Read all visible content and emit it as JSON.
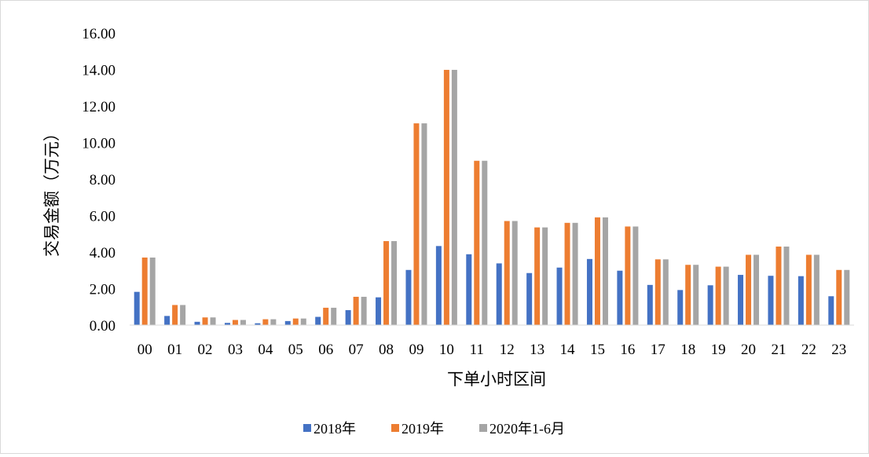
{
  "chart_data": {
    "type": "bar",
    "title": "",
    "xlabel": "下单小时区间",
    "ylabel": "交易金额（万元）",
    "ylim": [
      0,
      16
    ],
    "ytick_labels": [
      "0.00",
      "2.00",
      "4.00",
      "6.00",
      "8.00",
      "10.00",
      "12.00",
      "14.00",
      "16.00"
    ],
    "categories": [
      "00",
      "01",
      "02",
      "03",
      "04",
      "05",
      "06",
      "07",
      "08",
      "09",
      "10",
      "11",
      "12",
      "13",
      "14",
      "15",
      "16",
      "17",
      "18",
      "19",
      "20",
      "21",
      "22",
      "23"
    ],
    "series": [
      {
        "name": "2018年",
        "color": "#4472C4",
        "values": [
          1.82,
          0.5,
          0.18,
          0.12,
          0.1,
          0.22,
          0.45,
          0.82,
          1.52,
          3.02,
          4.33,
          3.88,
          3.38,
          2.85,
          3.15,
          3.62,
          2.98,
          2.2,
          1.92,
          2.18,
          2.75,
          2.7,
          2.68,
          1.58
        ]
      },
      {
        "name": "2019年",
        "color": "#ED7D31",
        "values": [
          3.7,
          1.1,
          0.42,
          0.28,
          0.32,
          0.36,
          0.95,
          1.55,
          4.6,
          11.05,
          13.98,
          9.0,
          5.7,
          5.35,
          5.6,
          5.9,
          5.4,
          3.6,
          3.3,
          3.2,
          3.85,
          4.3,
          3.85,
          3.02
        ]
      },
      {
        "name": "2020年1-6月",
        "color": "#A5A5A5",
        "values": [
          3.7,
          1.1,
          0.42,
          0.28,
          0.32,
          0.36,
          0.95,
          1.55,
          4.6,
          11.05,
          13.98,
          9.0,
          5.7,
          5.35,
          5.6,
          5.9,
          5.4,
          3.6,
          3.3,
          3.2,
          3.85,
          4.3,
          3.85,
          3.02
        ]
      }
    ],
    "grid": false,
    "legend_position": "bottom"
  }
}
